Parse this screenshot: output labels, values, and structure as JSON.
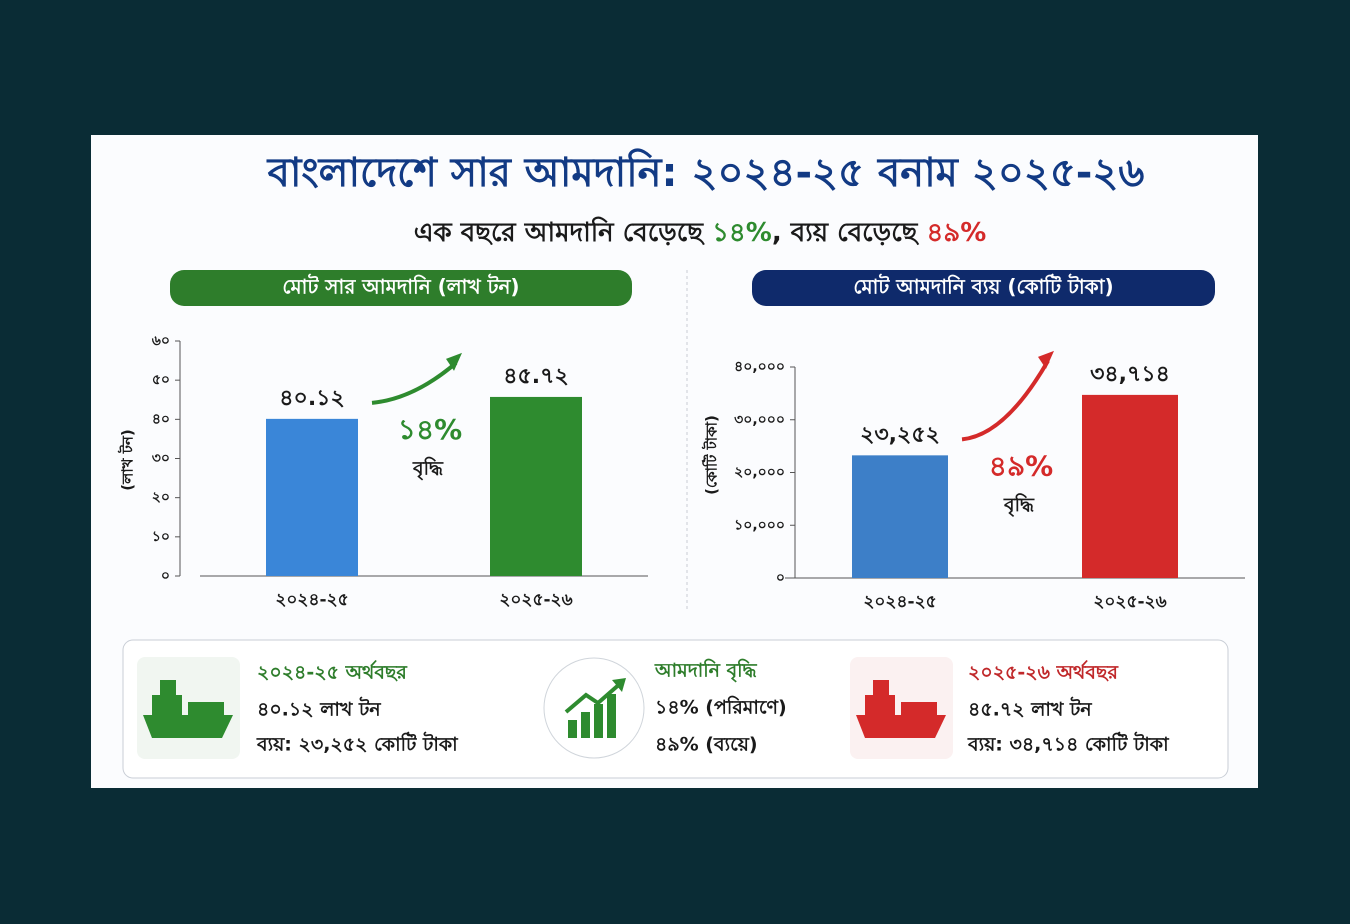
{
  "header": {
    "title": "বাংলাদেশে সার আমদানি: ২০২৪-২৫ বনাম ২০২৫-২৬",
    "subtitle": [
      "এক বছরে আমদানি বেড়েছে",
      "১৪%",
      ", ব্যয় বেড়েছে",
      "৪৯%"
    ]
  },
  "chart_data": [
    {
      "type": "bar",
      "title": "মোট সার আমদানি (লাখ টন)",
      "y_label": "(লাখ টন)",
      "categories": [
        "২০২৪-২৫",
        "২০২৫-২৬"
      ],
      "values": [
        40.12,
        45.72
      ],
      "value_labels": [
        "৪০.১২",
        "৪৫.৭২"
      ],
      "colors": [
        "#3a86d8",
        "#2e8b2f"
      ],
      "ylim": [
        0,
        60
      ],
      "yticks": [
        {
          "value": 0,
          "label": "০"
        },
        {
          "value": 10,
          "label": "১০"
        },
        {
          "value": 20,
          "label": "২০"
        },
        {
          "value": 30,
          "label": "৩০"
        },
        {
          "value": 40,
          "label": "৪০"
        },
        {
          "value": 50,
          "label": "৫০"
        },
        {
          "value": 60,
          "label": "৬০"
        }
      ],
      "annotations": [
        "১৪%",
        "বৃদ্ধি"
      ],
      "accent": "#2e8b2f",
      "title_color": "#2e7d2b"
    },
    {
      "type": "bar",
      "title": "মোট আমদানি ব্যয় (কোটি টাকা)",
      "y_label": "(কোটি টাকা)",
      "categories": [
        "২০২৪-২৫",
        "২০২৫-২৬"
      ],
      "values": [
        23252,
        34714
      ],
      "value_labels": [
        "২৩,২৫২",
        "৩৪,৭১৪"
      ],
      "colors": [
        "#3d7fc8",
        "#d42a2a"
      ],
      "ylim": [
        0,
        40000
      ],
      "yticks": [
        {
          "value": 0,
          "label": "০"
        },
        {
          "value": 10000,
          "label": "১০,০০০"
        },
        {
          "value": 20000,
          "label": "২০,০০০"
        },
        {
          "value": 30000,
          "label": "৩০,০০০"
        },
        {
          "value": 40000,
          "label": "৪০,০০০"
        }
      ],
      "annotations": [
        "৪৯%",
        "বৃদ্ধি"
      ],
      "accent": "#d42a2a",
      "title_color": "#0f2a6b"
    }
  ],
  "cards": [
    {
      "title": "২০২৪-২৫ অর্থবছর",
      "lines": [
        "৪০.১২ লাখ টন",
        "ব্যয়: ২৩,২৫২ কোটি টাকা"
      ]
    },
    {
      "title": "আমদানি বৃদ্ধি",
      "lines": [
        "১৪% (পরিমাণে)",
        "৪৯% (ব্যয়ে)"
      ]
    },
    {
      "title": "২০২৫-২৬ অর্থবছর",
      "lines": [
        "৪৫.৭২ লাখ টন",
        "ব্যয়: ৩৪,৭১৪ কোটি টাকা"
      ]
    }
  ]
}
